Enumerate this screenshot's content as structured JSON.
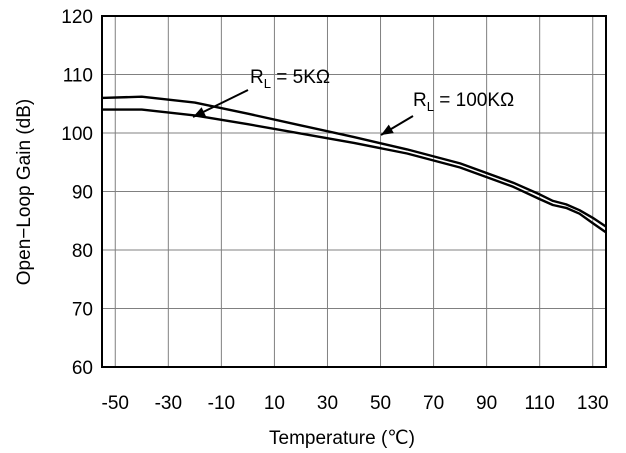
{
  "chart_data": {
    "type": "line",
    "xlabel": "Temperature (℃)",
    "ylabel": "Open−Loop Gain (dB)",
    "xlim": [
      -55,
      135
    ],
    "ylim": [
      60,
      120
    ],
    "x_ticks": [
      -50,
      -30,
      -10,
      10,
      30,
      50,
      70,
      90,
      110,
      130
    ],
    "x_tick_labels": [
      "-50",
      "-30",
      "-10",
      "10",
      "30",
      "50",
      "70",
      "90",
      "110",
      "130"
    ],
    "y_ticks": [
      60,
      70,
      80,
      90,
      100,
      110,
      120
    ],
    "y_tick_labels": [
      "60",
      "70",
      "80",
      "90",
      "100",
      "110",
      "120"
    ],
    "grid": true,
    "series": [
      {
        "name": "RL = 5KΩ",
        "x": [
          -55,
          -40,
          -20,
          0,
          20,
          40,
          60,
          80,
          100,
          110,
          115,
          120,
          125,
          130,
          135
        ],
        "y": [
          106.0,
          106.2,
          105.2,
          103.3,
          101.3,
          99.3,
          97.2,
          94.8,
          91.5,
          89.5,
          88.4,
          87.8,
          86.8,
          85.5,
          84.0
        ]
      },
      {
        "name": "RL = 100KΩ",
        "x": [
          -55,
          -40,
          -20,
          0,
          20,
          40,
          60,
          80,
          100,
          110,
          115,
          120,
          125,
          130,
          135
        ],
        "y": [
          104.0,
          104.0,
          103.0,
          101.5,
          99.9,
          98.3,
          96.5,
          94.1,
          90.8,
          88.7,
          87.7,
          87.2,
          86.2,
          84.6,
          83.0
        ]
      }
    ],
    "annotations": [
      {
        "main": "R",
        "sub": "L",
        "rest": " = 5KΩ",
        "series": 0
      },
      {
        "main": "R",
        "sub": "L",
        "rest": " = 100KΩ",
        "series": 1
      }
    ]
  }
}
